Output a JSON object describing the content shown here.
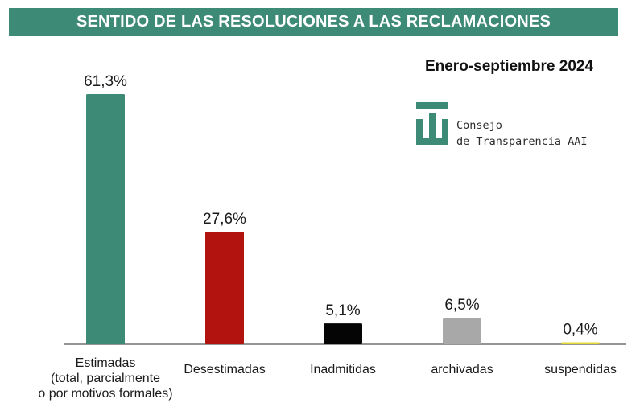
{
  "header": {
    "title": "SENTIDO DE LAS RESOLUCIONES A LAS RECLAMACIONES"
  },
  "period": "Enero-septiembre 2024",
  "logo": {
    "line1": "Consejo",
    "line2": "de Transparencia AAI",
    "color": "#3d8a77"
  },
  "chart_data": {
    "type": "bar",
    "categories": [
      "Estimadas (total, parcialmente o por motivos formales)",
      "Desestimadas",
      "Inadmitidas",
      "archivadas",
      "suspendidas"
    ],
    "category_lines": [
      [
        "Estimadas",
        "(total, parcialmente",
        "o por motivos formales)"
      ],
      [
        "Desestimadas"
      ],
      [
        "Inadmitidas"
      ],
      [
        "archivadas"
      ],
      [
        "suspendidas"
      ]
    ],
    "values": [
      61.3,
      27.6,
      5.1,
      6.5,
      0.4
    ],
    "value_labels": [
      "61,3%",
      "27,6%",
      "5,1%",
      "6,5%",
      "0,4%"
    ],
    "colors": [
      "#3d8a77",
      "#b3130f",
      "#050505",
      "#a8a8a8",
      "#e4d838"
    ],
    "unit": "%",
    "ylim": [
      0,
      61.3
    ],
    "grid": false,
    "legend": "none"
  }
}
